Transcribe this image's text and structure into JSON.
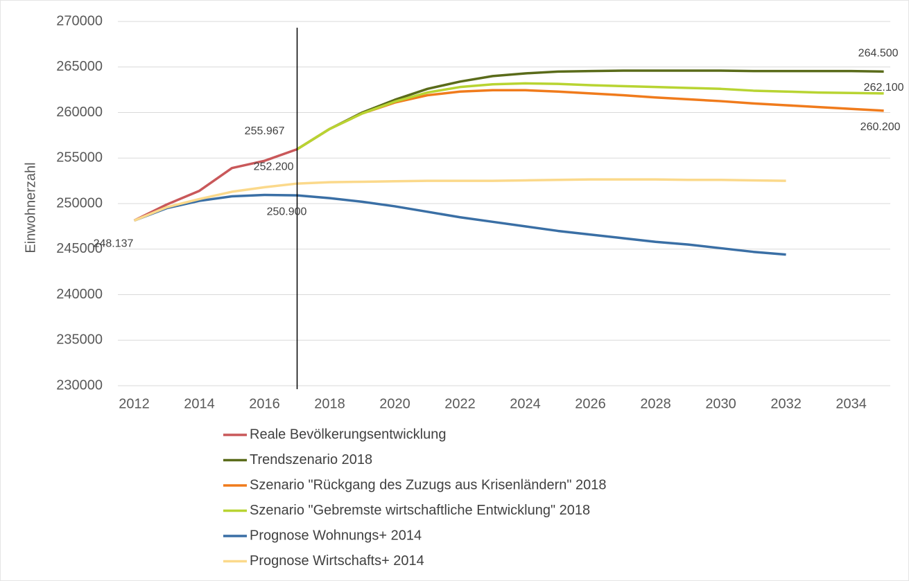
{
  "chart_data": {
    "type": "line",
    "y_label": "Einwohnerzahl",
    "x": [
      2012,
      2013,
      2014,
      2015,
      2016,
      2017,
      2018,
      2019,
      2020,
      2021,
      2022,
      2023,
      2024,
      2025,
      2026,
      2027,
      2028,
      2029,
      2030,
      2031,
      2032,
      2033,
      2034,
      2035
    ],
    "xlim": [
      2011.5,
      2035.2
    ],
    "xticks": [
      2012,
      2014,
      2016,
      2018,
      2020,
      2022,
      2024,
      2026,
      2028,
      2030,
      2032,
      2034
    ],
    "ylim": [
      230000,
      270000
    ],
    "yticks": [
      230000,
      235000,
      240000,
      245000,
      250000,
      255000,
      260000,
      265000,
      270000
    ],
    "grid": true,
    "legend": "bottom",
    "vline": 2017,
    "series": [
      {
        "name": "Reale Bevölkerungsentwicklung",
        "color": "#c9585a",
        "values": [
          248137,
          249900,
          251400,
          253900,
          254700,
          255967,
          null,
          null,
          null,
          null,
          null,
          null,
          null,
          null,
          null,
          null,
          null,
          null,
          null,
          null,
          null,
          null,
          null,
          null
        ],
        "value_labels": [
          "248.137",
          null,
          null,
          null,
          null,
          "255.967",
          null,
          null,
          null,
          null,
          null,
          null,
          null,
          null,
          null,
          null,
          null,
          null,
          null,
          null,
          null,
          null,
          null,
          null
        ]
      },
      {
        "name": "Trendszenario 2018",
        "color": "#5a6b1a",
        "values": [
          null,
          null,
          null,
          null,
          null,
          255967,
          258200,
          260000,
          261400,
          262600,
          263400,
          264000,
          264300,
          264500,
          264550,
          264600,
          264600,
          264600,
          264600,
          264550,
          264550,
          264550,
          264550,
          264500
        ],
        "value_labels": [
          null,
          null,
          null,
          null,
          null,
          null,
          null,
          null,
          null,
          null,
          null,
          null,
          null,
          null,
          null,
          null,
          null,
          null,
          null,
          null,
          null,
          null,
          null,
          "264.500"
        ]
      },
      {
        "name": "Szenario \"Rückgang des Zuzugs aus Krisenländern\" 2018",
        "color": "#f07b1c",
        "values": [
          null,
          null,
          null,
          null,
          null,
          255967,
          258200,
          259900,
          261100,
          261900,
          262300,
          262450,
          262450,
          262300,
          262100,
          261900,
          261650,
          261450,
          261250,
          261000,
          260800,
          260600,
          260400,
          260200
        ],
        "value_labels": [
          null,
          null,
          null,
          null,
          null,
          null,
          null,
          null,
          null,
          null,
          null,
          null,
          null,
          null,
          null,
          null,
          null,
          null,
          null,
          null,
          null,
          null,
          null,
          "260.200"
        ]
      },
      {
        "name": "Szenario \"Gebremste wirtschaftliche Entwicklung\" 2018",
        "color": "#b8d432",
        "values": [
          null,
          null,
          null,
          null,
          null,
          255967,
          258200,
          259900,
          261200,
          262200,
          262800,
          263100,
          263200,
          263150,
          263000,
          262900,
          262800,
          262700,
          262600,
          262400,
          262300,
          262200,
          262150,
          262100
        ],
        "value_labels": [
          null,
          null,
          null,
          null,
          null,
          null,
          null,
          null,
          null,
          null,
          null,
          null,
          null,
          null,
          null,
          null,
          null,
          null,
          null,
          null,
          null,
          null,
          null,
          "262.100"
        ]
      },
      {
        "name": "Prognose Wohnungs+ 2014",
        "color": "#3a6fa5",
        "values": [
          248137,
          249500,
          250300,
          250800,
          250950,
          250900,
          250600,
          250200,
          249700,
          249100,
          248500,
          248000,
          247500,
          247000,
          246600,
          246200,
          245800,
          245500,
          245100,
          244700,
          244400,
          null,
          null,
          null
        ],
        "value_labels": [
          null,
          null,
          null,
          null,
          null,
          "250.900",
          null,
          null,
          null,
          null,
          null,
          null,
          null,
          null,
          null,
          null,
          null,
          null,
          null,
          null,
          null,
          null,
          null,
          null
        ]
      },
      {
        "name": "Prognose Wirtschafts+ 2014",
        "color": "#fbd98b",
        "values": [
          248137,
          249600,
          250500,
          251300,
          251800,
          252200,
          252350,
          252400,
          252450,
          252500,
          252500,
          252500,
          252550,
          252600,
          252650,
          252650,
          252650,
          252600,
          252600,
          252550,
          252500,
          null,
          null,
          null
        ],
        "value_labels": [
          null,
          null,
          null,
          null,
          null,
          "252.200",
          null,
          null,
          null,
          null,
          null,
          null,
          null,
          null,
          null,
          null,
          null,
          null,
          null,
          null,
          null,
          null,
          null,
          null
        ]
      }
    ]
  }
}
